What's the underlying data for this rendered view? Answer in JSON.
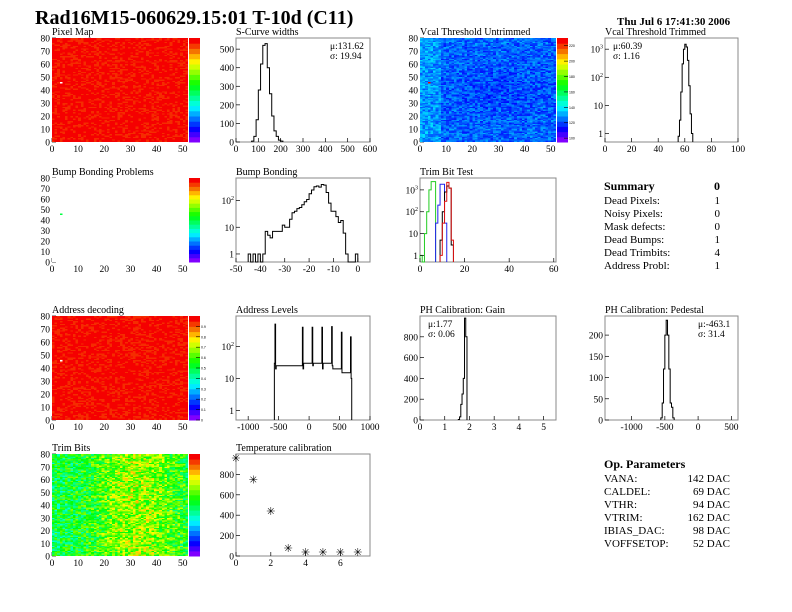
{
  "header": {
    "title": "Rad16M15-060629.15:01 T-10d (C11)",
    "date": "Thu Jul  6 17:41:30 2006"
  },
  "summary": {
    "title": "Summary",
    "value": "0",
    "rows": [
      {
        "label": "Dead Pixels:",
        "value": "1"
      },
      {
        "label": "Noisy Pixels:",
        "value": "0"
      },
      {
        "label": "Mask defects:",
        "value": "0"
      },
      {
        "label": "Dead Bumps:",
        "value": "1"
      },
      {
        "label": "Dead Trimbits:",
        "value": "4"
      },
      {
        "label": "Address Probl:",
        "value": "1"
      }
    ]
  },
  "op_parameters": {
    "title": "Op. Parameters",
    "rows": [
      {
        "label": "VANA:",
        "value": "142 DAC"
      },
      {
        "label": "CALDEL:",
        "value": "69 DAC"
      },
      {
        "label": "VTHR:",
        "value": "94 DAC"
      },
      {
        "label": "VTRIM:",
        "value": "162 DAC"
      },
      {
        "label": "IBIAS_DAC:",
        "value": "98 DAC"
      },
      {
        "label": "VOFFSETOP:",
        "value": "52 DAC"
      }
    ]
  },
  "colors": {
    "line": "#000000",
    "frame": "#888888",
    "green": "#22cc22",
    "blue": "#2222ee",
    "red": "#dd1111"
  },
  "chart_data": [
    {
      "id": "pixel-map",
      "type": "heatmap",
      "title": "Pixel Map",
      "xlim": [
        0,
        52
      ],
      "ylim": [
        0,
        80
      ],
      "xticks": [
        0,
        10,
        20,
        30,
        40,
        50
      ],
      "yticks": [
        0,
        10,
        20,
        30,
        40,
        50,
        60,
        70,
        80
      ],
      "zlim": [
        0,
        10
      ],
      "typical_z": 10,
      "special_cells": [
        {
          "x": 3,
          "y": 45,
          "z": null
        }
      ]
    },
    {
      "id": "s-curve-widths",
      "type": "bar",
      "title": "S-Curve widths",
      "xlim": [
        0,
        600
      ],
      "ylim": [
        0,
        560
      ],
      "xticks": [
        0,
        100,
        200,
        300,
        400,
        500,
        600
      ],
      "yticks": [
        0,
        100,
        200,
        300,
        400,
        500
      ],
      "log": false,
      "stats": [
        "μ:131.62",
        "σ: 19.94"
      ],
      "stats_pos": "top-right",
      "series": [
        {
          "bin_width": 10,
          "x": [
            70,
            80,
            90,
            100,
            110,
            120,
            130,
            140,
            150,
            160,
            170,
            180,
            190,
            200
          ],
          "values": [
            5,
            30,
            120,
            280,
            420,
            520,
            530,
            400,
            260,
            140,
            60,
            30,
            10,
            5
          ]
        }
      ]
    },
    {
      "id": "vcal-untrimmed",
      "type": "heatmap",
      "title": "Vcal Threshold Untrimmed",
      "xlim": [
        0,
        52
      ],
      "ylim": [
        0,
        80
      ],
      "xticks": [
        0,
        10,
        20,
        30,
        40,
        50
      ],
      "yticks": [
        0,
        10,
        20,
        30,
        40,
        50,
        60,
        70,
        80
      ],
      "zlim": [
        95,
        230
      ],
      "typical_z": 122,
      "colorbar_ticks": [
        100,
        120,
        140,
        160,
        180,
        200,
        220
      ],
      "special_cells": [
        {
          "x": 3,
          "y": 45,
          "z": 230
        }
      ]
    },
    {
      "id": "vcal-trimmed",
      "type": "bar",
      "title": "Vcal Threshold Trimmed",
      "xlim": [
        0,
        100
      ],
      "ylim": [
        0.5,
        2500
      ],
      "xticks": [
        0,
        20,
        40,
        60,
        80,
        100
      ],
      "yticks": [
        1,
        10,
        100,
        1000
      ],
      "log": true,
      "stats": [
        "μ:60.39",
        "σ: 1.16"
      ],
      "stats_pos": "top-left",
      "series": [
        {
          "bin_width": 1,
          "x": [
            55,
            56,
            57,
            58,
            59,
            60,
            61,
            62,
            63,
            64,
            65
          ],
          "values": [
            0.8,
            3,
            30,
            300,
            1000,
            1500,
            1200,
            400,
            50,
            5,
            1
          ]
        }
      ]
    },
    {
      "id": "bump-bonding-problems",
      "type": "heatmap",
      "title": "Bump Bonding Problems",
      "xlim": [
        0,
        52
      ],
      "ylim": [
        0,
        80
      ],
      "xticks": [
        0,
        10,
        20,
        30,
        40,
        50
      ],
      "yticks": [
        0,
        10,
        20,
        30,
        40,
        50,
        60,
        70,
        80
      ],
      "zlim": [
        -2,
        2
      ],
      "typical_z": null,
      "special_cells": [
        {
          "x": 3,
          "y": 45,
          "z": 0
        }
      ]
    },
    {
      "id": "bump-bonding",
      "type": "bar",
      "title": "Bump Bonding",
      "xlim": [
        -50,
        5
      ],
      "ylim": [
        0.5,
        700
      ],
      "xticks": [
        -50,
        -40,
        -30,
        -20,
        -10,
        0
      ],
      "yticks": [
        1,
        10,
        100
      ],
      "log": true,
      "series": [
        {
          "bin_width": 1,
          "x": [
            -45,
            -44,
            -43,
            -42,
            -41,
            -40,
            -39,
            -38,
            -37,
            -36,
            -35,
            -34,
            -33,
            -32,
            -31,
            -30,
            -29,
            -28,
            -27,
            -26,
            -25,
            -24,
            -23,
            -22,
            -21,
            -20,
            -19,
            -18,
            -17,
            -16,
            -15,
            -14,
            -13,
            -12,
            -11,
            -10,
            -9,
            -8,
            -7,
            -6,
            -5,
            -4,
            -3,
            -2,
            -1
          ],
          "values": [
            1,
            0,
            1,
            0,
            1,
            0,
            1,
            7,
            5,
            4,
            7,
            7,
            7,
            7,
            12,
            10,
            10,
            20,
            35,
            40,
            50,
            55,
            70,
            90,
            110,
            180,
            250,
            330,
            350,
            320,
            400,
            380,
            200,
            80,
            40,
            40,
            25,
            15,
            18,
            6,
            1,
            0,
            0,
            0,
            1
          ]
        }
      ]
    },
    {
      "id": "trim-bit-test",
      "type": "bar",
      "title": "Trim Bit Test",
      "xlim": [
        0,
        61
      ],
      "ylim": [
        0.5,
        3500
      ],
      "xticks": [
        0,
        20,
        40,
        60
      ],
      "yticks": [
        1,
        10,
        100,
        1000
      ],
      "log": true,
      "series": [
        {
          "color": "green",
          "bin_width": 1,
          "x": [
            0,
            1,
            2,
            3,
            4,
            5,
            6
          ],
          "values": [
            1,
            0.5,
            10,
            100,
            1000,
            2400,
            2400
          ]
        },
        {
          "color": "blue",
          "bin_width": 1,
          "x": [
            7,
            8,
            9,
            10,
            11
          ],
          "values": [
            30,
            200,
            1800,
            1800,
            30
          ]
        },
        {
          "color": "black",
          "bin_width": 1,
          "x": [
            9,
            10,
            11,
            12,
            13,
            14
          ],
          "values": [
            5,
            100,
            800,
            1500,
            1200,
            3
          ]
        },
        {
          "color": "red",
          "bin_width": 1,
          "x": [
            9,
            10,
            11,
            12,
            13,
            14
          ],
          "values": [
            1,
            30,
            300,
            2200,
            1200,
            5
          ]
        }
      ]
    },
    {
      "id": "address-decoding",
      "type": "heatmap",
      "title": "Address decoding",
      "xlim": [
        0,
        52
      ],
      "ylim": [
        0,
        80
      ],
      "xticks": [
        0,
        10,
        20,
        30,
        40,
        50
      ],
      "yticks": [
        0,
        10,
        20,
        30,
        40,
        50,
        60,
        70,
        80
      ],
      "zlim": [
        0,
        1
      ],
      "typical_z": 1,
      "colorbar_ticks": [
        0,
        0.1,
        0.2,
        0.3,
        0.4,
        0.5,
        0.6,
        0.7,
        0.8,
        0.9
      ],
      "special_cells": [
        {
          "x": 3,
          "y": 45,
          "z": null
        }
      ]
    },
    {
      "id": "address-levels",
      "type": "bar",
      "title": "Address Levels",
      "xlim": [
        -1200,
        1000
      ],
      "ylim": [
        0.5,
        900
      ],
      "xticks": [
        -1000,
        -500,
        0,
        500,
        1000
      ],
      "yticks": [
        1,
        10,
        100
      ],
      "log": true,
      "series": [
        {
          "bin_width": 10,
          "x": [
            -570,
            -560,
            -550,
            -120,
            -110,
            -100,
            40,
            50,
            60,
            200,
            210,
            220,
            360,
            370,
            380,
            520,
            530,
            540,
            670,
            680,
            690
          ],
          "values": [
            30,
            500,
            20,
            25,
            400,
            20,
            30,
            400,
            25,
            30,
            400,
            20,
            30,
            420,
            25,
            20,
            280,
            15,
            15,
            200,
            10
          ]
        }
      ]
    },
    {
      "id": "ph-gain",
      "type": "bar",
      "title": "PH Calibration: Gain",
      "xlim": [
        0,
        5.5
      ],
      "ylim": [
        0,
        1000
      ],
      "xticks": [
        0,
        1,
        2,
        3,
        4,
        5
      ],
      "yticks": [
        0,
        200,
        400,
        600,
        800
      ],
      "log": false,
      "stats": [
        "μ:1.77",
        "σ: 0.06"
      ],
      "stats_pos": "top-left",
      "series": [
        {
          "bin_width": 0.05,
          "x": [
            1.55,
            1.6,
            1.65,
            1.7,
            1.75,
            1.8,
            1.85
          ],
          "values": [
            5,
            30,
            150,
            250,
            400,
            980,
            800
          ]
        }
      ]
    },
    {
      "id": "ph-pedestal",
      "type": "bar",
      "title": "PH Calibration: Pedestal",
      "xlim": [
        -1400,
        600
      ],
      "ylim": [
        0,
        245
      ],
      "xticks": [
        -1000,
        -500,
        0,
        500
      ],
      "yticks": [
        0,
        50,
        100,
        150,
        200
      ],
      "log": false,
      "stats": [
        "μ:-463.1",
        "σ: 31.4"
      ],
      "stats_pos": "top-right",
      "series": [
        {
          "bin_width": 20,
          "x": [
            -560,
            -540,
            -520,
            -500,
            -480,
            -460,
            -440,
            -420,
            -400,
            -380
          ],
          "values": [
            5,
            40,
            120,
            200,
            235,
            200,
            120,
            40,
            30,
            5
          ]
        }
      ]
    },
    {
      "id": "trim-bits",
      "type": "heatmap",
      "title": "Trim Bits",
      "xlim": [
        0,
        52
      ],
      "ylim": [
        0,
        80
      ],
      "xticks": [
        0,
        10,
        20,
        30,
        40,
        50
      ],
      "yticks": [
        0,
        10,
        20,
        30,
        40,
        50,
        60,
        70,
        80
      ],
      "zlim": [
        0,
        16
      ],
      "typical_z": 9,
      "special_cells": []
    },
    {
      "id": "temperature-calibration",
      "type": "scatter",
      "title": "Temperature calibration",
      "xlim": [
        0,
        7.7
      ],
      "ylim": [
        0,
        1000
      ],
      "xticks": [
        0,
        2,
        4,
        6
      ],
      "yticks": [
        0,
        200,
        400,
        600,
        800
      ],
      "log": false,
      "series": [
        {
          "x": [
            0,
            1,
            2,
            3,
            4,
            5,
            6,
            7
          ],
          "values": [
            960,
            750,
            440,
            80,
            40,
            40,
            40,
            40
          ]
        }
      ]
    }
  ]
}
